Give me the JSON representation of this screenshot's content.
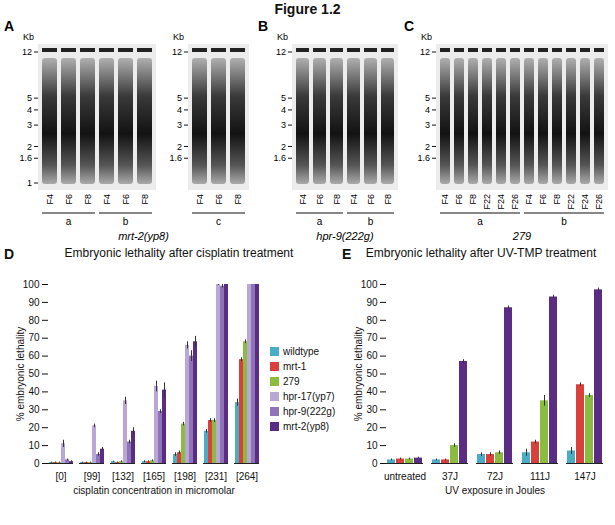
{
  "title": "Figure 1.2",
  "blots": [
    {
      "panel": "A",
      "kb_label": "Kb",
      "strain": "mrt-2(yp8)",
      "gels": [
        {
          "ladder": [
            12,
            5,
            4,
            3,
            2,
            1.6,
            1
          ],
          "groups": [
            {
              "name": "a",
              "lanes": [
                "F4",
                "F6",
                "F8"
              ]
            },
            {
              "name": "b",
              "lanes": [
                "F4",
                "F6",
                "F8"
              ]
            }
          ]
        },
        {
          "ladder": [
            12,
            5,
            4,
            3,
            2,
            1.6
          ],
          "groups": [
            {
              "name": "c",
              "lanes": [
                "F4",
                "F6",
                "F8"
              ]
            }
          ]
        }
      ]
    },
    {
      "panel": "B",
      "kb_label": "Kb",
      "strain": "hpr-9(222g)",
      "gels": [
        {
          "ladder": [
            12,
            5,
            4,
            3,
            2,
            1.6
          ],
          "groups": [
            {
              "name": "a",
              "lanes": [
                "F4",
                "F6",
                "F8"
              ]
            },
            {
              "name": "b",
              "lanes": [
                "F4",
                "F6",
                "F8"
              ]
            }
          ]
        }
      ]
    },
    {
      "panel": "C",
      "kb_label": "Kb",
      "strain": "279",
      "gels": [
        {
          "ladder": [
            12,
            5,
            4,
            3,
            2,
            1.6
          ],
          "groups": [
            {
              "name": "a",
              "lanes": [
                "F4",
                "F6",
                "F8",
                "F22",
                "F24",
                "F26"
              ]
            },
            {
              "name": "b",
              "lanes": [
                "F4",
                "F6",
                "F8",
                "F22",
                "F24",
                "F26"
              ]
            }
          ]
        }
      ]
    }
  ],
  "chart_data": [
    {
      "panel": "D",
      "type": "bar",
      "title": "Embryonic lethality after cisplatin treatment",
      "x_label": "cisplatin concentration in micromolar",
      "y_label": "% embryonic lethality",
      "categories": [
        "[0]",
        "[99]",
        "[132]",
        "[165]",
        "[198]",
        "[231]",
        "[264]"
      ],
      "ylim": [
        0,
        100
      ],
      "yticks": [
        0,
        10,
        20,
        30,
        40,
        50,
        60,
        70,
        80,
        90,
        100
      ],
      "legend": "right",
      "series": [
        {
          "name": "wildtype",
          "color": "#4bacc6",
          "values": [
            0.5,
            0.5,
            1,
            1,
            5,
            18,
            34
          ],
          "errors": [
            0.3,
            0.3,
            0.3,
            0.5,
            1,
            1,
            2
          ]
        },
        {
          "name": "mrt-1",
          "color": "#d9403c",
          "values": [
            0.5,
            0.5,
            0.5,
            1,
            6,
            24,
            58
          ],
          "errors": [
            0.3,
            0.3,
            0.3,
            0.5,
            1,
            1,
            1
          ]
        },
        {
          "name": "279",
          "color": "#8cbc3f",
          "values": [
            0.5,
            0.5,
            1,
            1.5,
            22,
            24,
            68
          ],
          "errors": [
            0.3,
            0.3,
            0.5,
            0.5,
            1,
            1,
            1
          ]
        },
        {
          "name": "hpr-17(yp7)",
          "color": "#b9a7d6",
          "values": [
            11,
            21,
            35,
            43,
            66,
            100,
            100
          ],
          "errors": [
            2,
            1,
            2,
            3,
            2,
            0.5,
            0
          ]
        },
        {
          "name": "hpr-9(222g)",
          "color": "#8f73b8",
          "values": [
            2,
            5,
            12,
            29,
            60,
            99,
            100
          ],
          "errors": [
            0.5,
            1,
            1,
            1,
            3,
            1,
            0
          ]
        },
        {
          "name": "mrt-2(yp8)",
          "color": "#5b2c83",
          "values": [
            1,
            8,
            18,
            41,
            68,
            100,
            100
          ],
          "errors": [
            0.5,
            1,
            2,
            4,
            3,
            0,
            0
          ]
        }
      ]
    },
    {
      "panel": "E",
      "type": "bar",
      "title": "Embryonic lethality after UV-TMP treatment",
      "x_label": "UV exposure in Joules",
      "y_label": "% embryonic lethality",
      "categories": [
        "untreated",
        "37J",
        "72J",
        "111J",
        "147J"
      ],
      "ylim": [
        0,
        100
      ],
      "yticks": [
        0,
        10,
        20,
        30,
        40,
        50,
        60,
        70,
        80,
        90,
        100
      ],
      "series": [
        {
          "name": "wildtype",
          "color": "#4bacc6",
          "values": [
            2,
            2,
            5,
            6,
            7
          ],
          "errors": [
            0.5,
            0.5,
            1,
            2,
            2
          ]
        },
        {
          "name": "mrt-1",
          "color": "#d9403c",
          "values": [
            2.5,
            2,
            5,
            12,
            44
          ],
          "errors": [
            0.5,
            0.5,
            1,
            1,
            1
          ]
        },
        {
          "name": "279",
          "color": "#8cbc3f",
          "values": [
            2.5,
            10,
            6,
            35,
            38
          ],
          "errors": [
            0.5,
            1,
            1,
            3,
            1
          ]
        },
        {
          "name": "mrt-2(yp8)",
          "color": "#5b2c83",
          "values": [
            3,
            57,
            87,
            93,
            97
          ],
          "errors": [
            0.5,
            1,
            1,
            1,
            1
          ]
        }
      ]
    }
  ]
}
